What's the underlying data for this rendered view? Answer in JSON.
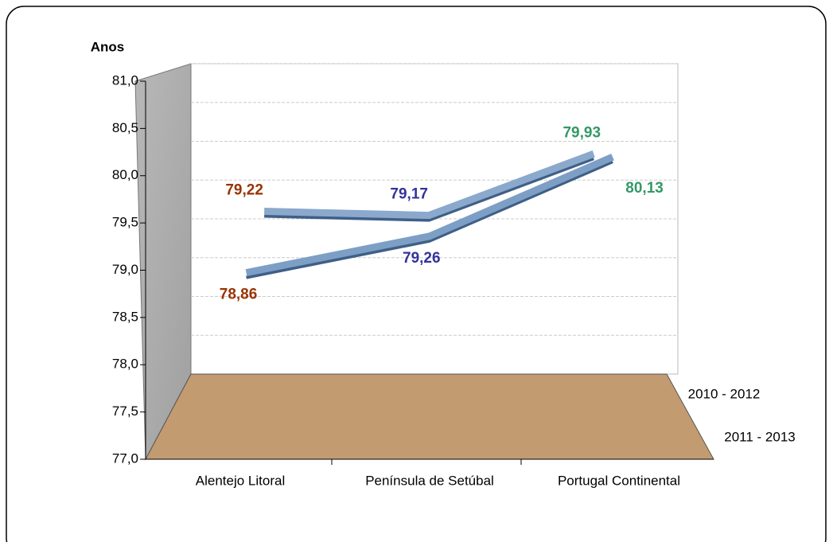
{
  "chart_data": {
    "type": "line3d",
    "y_label": "Anos",
    "categories": [
      "Alentejo Litoral",
      "Península de Setúbal",
      "Portugal Continental"
    ],
    "category_colors": [
      "#993300",
      "#333399",
      "#339966"
    ],
    "series": [
      {
        "name": "2010 - 2012",
        "color": "#8aa9cc",
        "values": [
          79.22,
          79.17,
          79.93
        ],
        "value_labels": [
          "79,22",
          "79,17",
          "79,93"
        ]
      },
      {
        "name": "2011 - 2013",
        "color": "#7d9fc6",
        "values": [
          78.86,
          79.26,
          80.13
        ],
        "value_labels": [
          "78,86",
          "79,26",
          "80,13"
        ]
      }
    ],
    "ylim": [
      77,
      81
    ],
    "yticks": [
      {
        "value": 77,
        "label": "77,0"
      },
      {
        "value": 77.5,
        "label": "77,5"
      },
      {
        "value": 78,
        "label": "78,0"
      },
      {
        "value": 78.5,
        "label": "78,5"
      },
      {
        "value": 79,
        "label": "79,0"
      },
      {
        "value": 79.5,
        "label": "79,5"
      },
      {
        "value": 80,
        "label": "80,0"
      },
      {
        "value": 80.5,
        "label": "80,5"
      },
      {
        "value": 81,
        "label": "81,0"
      }
    ],
    "grid": true
  }
}
